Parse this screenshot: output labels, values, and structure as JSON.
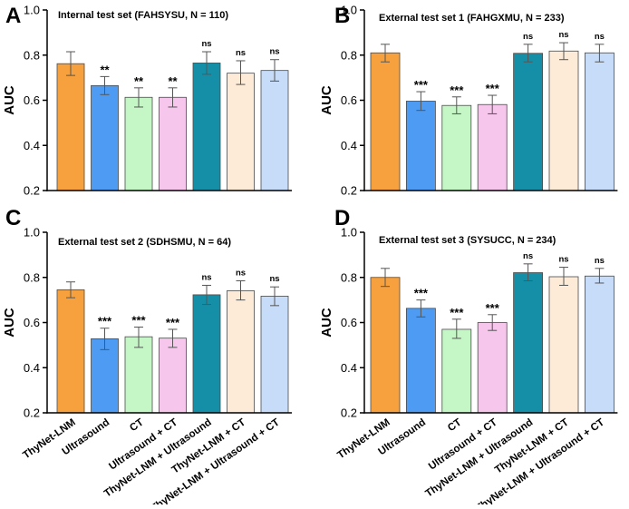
{
  "chart_data": [
    {
      "type": "bar",
      "panel": "A",
      "title": "Internal test set (FAHSYSU, N = 110)",
      "ylabel": "AUC",
      "xlabel": "",
      "ylim": [
        0.2,
        1.0
      ],
      "yticks": [
        "0.2",
        "0.4",
        "0.6",
        "0.8",
        "1.0"
      ],
      "show_category_labels": false,
      "categories": [
        "ThyNet-LNM",
        "Ultrasound",
        "CT",
        "Ultrasound + CT",
        "ThyNet-LNM + Ultrasound",
        "ThyNet-LNM + CT",
        "ThyNet-LNM + Ultrasound + CT"
      ],
      "values": [
        0.762,
        0.665,
        0.613,
        0.613,
        0.765,
        0.72,
        0.732
      ],
      "err_low": [
        0.71,
        0.625,
        0.57,
        0.57,
        0.715,
        0.67,
        0.685
      ],
      "err_high": [
        0.815,
        0.705,
        0.655,
        0.655,
        0.815,
        0.775,
        0.78
      ],
      "significance": [
        "",
        "**",
        "**",
        "**",
        "ns",
        "ns",
        "ns"
      ]
    },
    {
      "type": "bar",
      "panel": "B",
      "title": "External test set 1 (FAHGXMU, N = 233)",
      "ylabel": "AUC",
      "xlabel": "",
      "ylim": [
        0.2,
        1.0
      ],
      "yticks": [
        "0.2",
        "0.4",
        "0.6",
        "0.8",
        "1.0"
      ],
      "show_category_labels": false,
      "categories": [
        "ThyNet-LNM",
        "Ultrasound",
        "CT",
        "Ultrasound + CT",
        "ThyNet-LNM + Ultrasound",
        "ThyNet-LNM + CT",
        "ThyNet-LNM + Ultrasound + CT"
      ],
      "values": [
        0.81,
        0.596,
        0.577,
        0.581,
        0.808,
        0.818,
        0.81
      ],
      "err_low": [
        0.77,
        0.555,
        0.54,
        0.54,
        0.77,
        0.78,
        0.77
      ],
      "err_high": [
        0.848,
        0.638,
        0.615,
        0.622,
        0.848,
        0.855,
        0.848
      ],
      "significance": [
        "",
        "***",
        "***",
        "***",
        "ns",
        "ns",
        "ns"
      ]
    },
    {
      "type": "bar",
      "panel": "C",
      "title": "External test set 2 (SDHSMU, N = 64)",
      "ylabel": "AUC",
      "xlabel": "",
      "ylim": [
        0.2,
        1.0
      ],
      "yticks": [
        "0.2",
        "0.4",
        "0.6",
        "0.8",
        "1.0"
      ],
      "show_category_labels": true,
      "categories": [
        "ThyNet-LNM",
        "Ultrasound",
        "CT",
        "Ultrasound + CT",
        "ThyNet-LNM + Ultrasound",
        "ThyNet-LNM + CT",
        "ThyNet-LNM + Ultrasound + CT"
      ],
      "values": [
        0.745,
        0.528,
        0.537,
        0.531,
        0.723,
        0.741,
        0.717
      ],
      "err_low": [
        0.71,
        0.48,
        0.49,
        0.49,
        0.68,
        0.7,
        0.675
      ],
      "err_high": [
        0.78,
        0.575,
        0.58,
        0.57,
        0.765,
        0.785,
        0.758
      ],
      "significance": [
        "",
        "***",
        "***",
        "***",
        "ns",
        "ns",
        "ns"
      ]
    },
    {
      "type": "bar",
      "panel": "D",
      "title": "External test set 3 (SYSUCC, N = 234)",
      "ylabel": "AUC",
      "xlabel": "",
      "ylim": [
        0.2,
        1.0
      ],
      "yticks": [
        "0.2",
        "0.4",
        "0.6",
        "0.8",
        "1.0"
      ],
      "show_category_labels": true,
      "categories": [
        "ThyNet-LNM",
        "Ultrasound",
        "CT",
        "Ultrasound + CT",
        "ThyNet-LNM + Ultrasound",
        "ThyNet-LNM + CT",
        "ThyNet-LNM + Ultrasound + CT"
      ],
      "values": [
        0.8,
        0.663,
        0.57,
        0.6,
        0.821,
        0.803,
        0.806
      ],
      "err_low": [
        0.76,
        0.625,
        0.53,
        0.565,
        0.785,
        0.765,
        0.775
      ],
      "err_high": [
        0.84,
        0.7,
        0.615,
        0.635,
        0.86,
        0.845,
        0.84
      ],
      "significance": [
        "",
        "***",
        "***",
        "***",
        "ns",
        "ns",
        "ns"
      ]
    }
  ],
  "colors": {
    "fills": [
      "#f7a13e",
      "#4d9bf2",
      "#c5f7c6",
      "#f6c6ec",
      "#158fa8",
      "#fdebd8",
      "#c7dcf8"
    ],
    "axis": "#000000",
    "error_bar": "#555555"
  }
}
